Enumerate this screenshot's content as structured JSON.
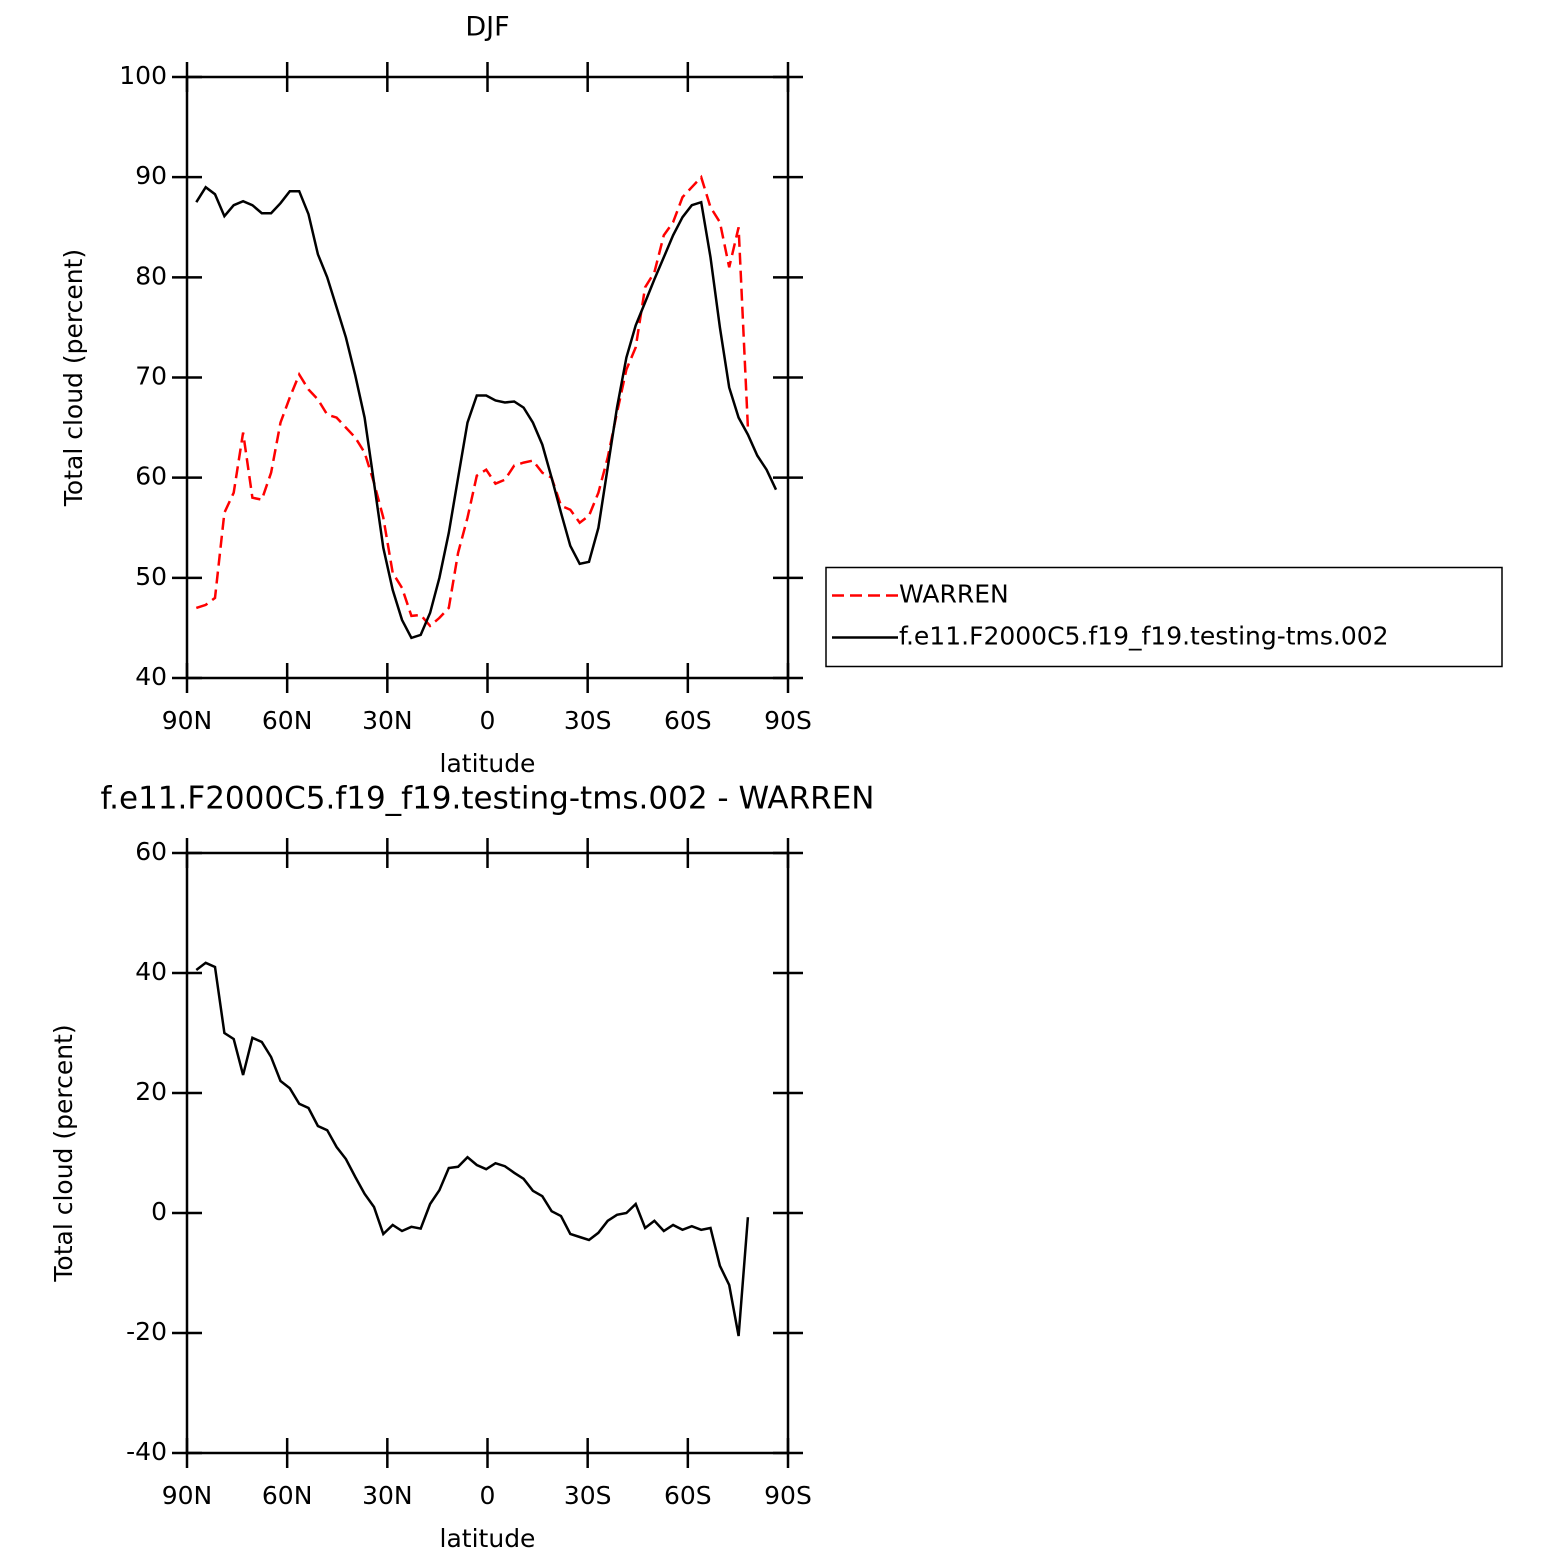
{
  "chart_data": [
    {
      "type": "line",
      "title": "DJF",
      "xlabel": "latitude",
      "ylabel": "Total cloud (percent)",
      "x": [
        87.2,
        84.4,
        81.6,
        78.8,
        76,
        73.2,
        70.4,
        67.6,
        64.8,
        62,
        59.2,
        56.4,
        53.6,
        50.8,
        48,
        45.2,
        42.4,
        39.6,
        36.8,
        34,
        31.2,
        28.4,
        25.6,
        22.8,
        20,
        17.2,
        14.4,
        11.6,
        8.8,
        6,
        3.2,
        0.4,
        -2.4,
        -5.2,
        -8,
        -10.8,
        -13.6,
        -16.4,
        -19.2,
        -22,
        -24.8,
        -27.6,
        -30.4,
        -33.2,
        -36,
        -38.8,
        -41.6,
        -44.4,
        -47.2,
        -50,
        -52.8,
        -55.6,
        -58.4,
        -61.2,
        -64,
        -66.8,
        -69.6,
        -72.4,
        -75.2,
        -78,
        -80.8,
        -83.6,
        -86.4
      ],
      "series": [
        {
          "name": "WARREN",
          "color": "#ff0000",
          "linestyle": "dashed",
          "values": [
            47,
            47.3,
            48,
            56.5,
            58.5,
            64.5,
            58,
            57.8,
            60.5,
            65.5,
            68,
            70.3,
            68.8,
            67.8,
            66.3,
            66,
            65,
            64,
            62.5,
            59.5,
            56,
            50.5,
            49,
            46.2,
            46.3,
            45.2,
            46,
            47,
            52.5,
            56,
            60.2,
            60.8,
            59.4,
            59.8,
            61.2,
            61.5,
            61.7,
            60.5,
            60,
            57.2,
            56.8,
            55.5,
            56.2,
            58.5,
            62,
            66.5,
            70.8,
            73,
            79,
            80.5,
            84.2,
            85.5,
            88,
            89,
            90,
            87,
            85.5,
            81,
            85,
            65,
            null,
            null,
            null
          ]
        },
        {
          "name": "f.e11.F2000C5.f19_f19.testing-tms.002",
          "color": "#000000",
          "linestyle": "solid",
          "values": [
            87.5,
            89,
            88.3,
            86.1,
            87.2,
            87.6,
            87.2,
            86.4,
            86.4,
            87.4,
            88.6,
            88.6,
            86.3,
            82.3,
            80,
            77,
            74,
            70.2,
            66,
            59.5,
            53,
            48.8,
            45.8,
            44,
            44.3,
            46.5,
            50,
            54.5,
            60,
            65.5,
            68.2,
            68.2,
            67.7,
            67.5,
            67.6,
            67,
            65.5,
            63.3,
            60,
            56.5,
            53.2,
            51.4,
            51.6,
            55,
            61,
            67,
            72,
            75.2,
            77.5,
            79.8,
            82,
            84.2,
            86,
            87.2,
            87.5,
            82,
            75,
            69,
            66,
            64.3,
            62.2,
            60.8,
            58.8
          ]
        }
      ],
      "xlim": [
        90,
        -90
      ],
      "xticks": [
        {
          "value": 90,
          "label": "90N"
        },
        {
          "value": 60,
          "label": "60N"
        },
        {
          "value": 30,
          "label": "30N"
        },
        0,
        {
          "value": -30,
          "label": "30S"
        },
        {
          "value": -60,
          "label": "60S"
        },
        {
          "value": -90,
          "label": "90S"
        }
      ],
      "ylim": [
        40,
        100
      ],
      "yticks": [
        40,
        50,
        60,
        70,
        80,
        90,
        100
      ],
      "legend": "right"
    },
    {
      "type": "line",
      "title": "f.e11.F2000C5.f19_f19.testing-tms.002 - WARREN",
      "xlabel": "latitude",
      "ylabel": "Total cloud (percent)",
      "x": [
        87.2,
        84.4,
        81.6,
        78.8,
        76,
        73.2,
        70.4,
        67.6,
        64.8,
        62,
        59.2,
        56.4,
        53.6,
        50.8,
        48,
        45.2,
        42.4,
        39.6,
        36.8,
        34,
        31.2,
        28.4,
        25.6,
        22.8,
        20,
        17.2,
        14.4,
        11.6,
        8.8,
        6,
        3.2,
        0.4,
        -2.4,
        -5.2,
        -8,
        -10.8,
        -13.6,
        -16.4,
        -19.2,
        -22,
        -24.8,
        -27.6,
        -30.4,
        -33.2,
        -36,
        -38.8,
        -41.6,
        -44.4,
        -47.2,
        -50,
        -52.8,
        -55.6,
        -58.4,
        -61.2,
        -64,
        -66.8,
        -69.6,
        -72.4,
        -75.2,
        -78,
        -80.8,
        -83.6,
        -86.4
      ],
      "values": [
        40.5,
        41.7,
        41,
        30,
        29,
        23,
        29.2,
        28.5,
        26,
        22,
        20.8,
        18.2,
        17.5,
        14.5,
        13.8,
        11,
        9,
        6,
        3.2,
        1,
        -3.5,
        -2,
        -3,
        -2.3,
        -2.6,
        1.5,
        3.8,
        7.5,
        7.7,
        9.3,
        8,
        7.3,
        8.3,
        7.8,
        6.7,
        5.7,
        3.7,
        2.8,
        0.3,
        -0.5,
        -3.5,
        -4,
        -4.5,
        -3.3,
        -1.3,
        -0.3,
        0,
        1.5,
        -2.5,
        -1.3,
        -3,
        -2,
        -2.8,
        -2.2,
        -2.8,
        -2.5,
        -8.8,
        -12,
        -20.5,
        -0.7,
        null,
        null,
        null
      ],
      "color": "#000000",
      "xlim": [
        90,
        -90
      ],
      "xticks": [
        {
          "value": 90,
          "label": "90N"
        },
        {
          "value": 60,
          "label": "60N"
        },
        {
          "value": 30,
          "label": "30N"
        },
        0,
        {
          "value": -30,
          "label": "30S"
        },
        {
          "value": -60,
          "label": "60S"
        },
        {
          "value": -90,
          "label": "90S"
        }
      ],
      "ylim": [
        -40,
        60
      ],
      "yticks": [
        -40,
        -20,
        0,
        20,
        40,
        60
      ]
    }
  ]
}
